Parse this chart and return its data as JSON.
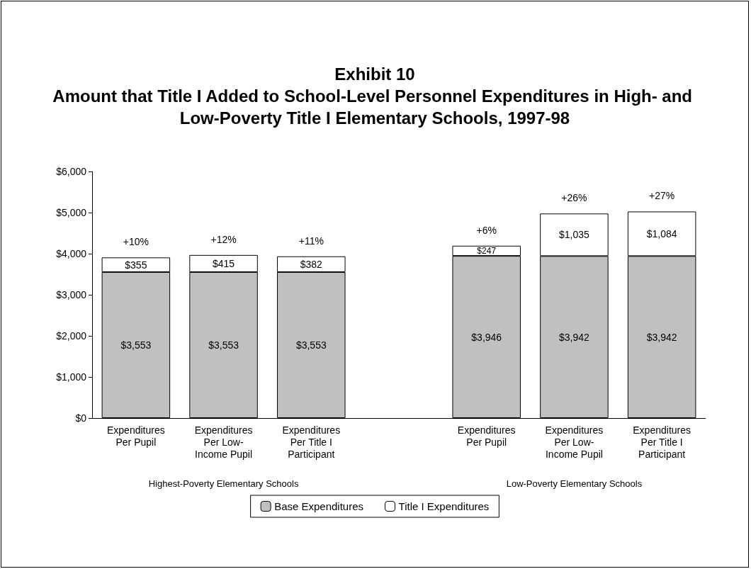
{
  "chart_data": {
    "type": "bar",
    "stacked": true,
    "title": "Exhibit 10",
    "subtitle": "Amount that Title I Added to School-Level Personnel Expenditures in High- and Low-Poverty Title I Elementary Schools, 1997-98",
    "categories": [
      "Expenditures\nPer Pupil",
      "Expenditures\nPer Low-\nIncome Pupil",
      "Expenditures\nPer Title I\nParticipant",
      null,
      "Expenditures\nPer Pupil",
      "Expenditures\nPer Low-\nIncome Pupil",
      "Expenditures\nPer Title I\nParticipant"
    ],
    "series": [
      {
        "name": "Base Expenditures",
        "color": "#c0c0c0",
        "values": [
          3553,
          3553,
          3553,
          null,
          3946,
          3942,
          3942
        ],
        "value_labels": [
          "$3,553",
          "$3,553",
          "$3,553",
          null,
          "$3,946",
          "$3,942",
          "$3,942"
        ]
      },
      {
        "name": "Title I Expenditures",
        "color": "#ffffff",
        "values": [
          355,
          415,
          382,
          null,
          247,
          1035,
          1084
        ],
        "value_labels": [
          "$355",
          "$415",
          "$382",
          null,
          "$247",
          "$1,035",
          "$1,084"
        ]
      }
    ],
    "ylim": [
      0,
      6000
    ],
    "yticks": [
      {
        "value": 0,
        "label": "$0"
      },
      {
        "value": 1000,
        "label": "$1,000"
      },
      {
        "value": 2000,
        "label": "$2,000"
      },
      {
        "value": 3000,
        "label": "$3,000"
      },
      {
        "value": 4000,
        "label": "$4,000"
      },
      {
        "value": 5000,
        "label": "$5,000"
      },
      {
        "value": 6000,
        "label": "$6,000"
      }
    ],
    "annotations": [
      "+10%",
      "+12%",
      "+11%",
      "+6%",
      "+26%",
      "+27%",
      "Highest-Poverty Elementary Schools",
      "Low-Poverty Elementary Schools"
    ],
    "legend": "bottom",
    "grid": false
  }
}
